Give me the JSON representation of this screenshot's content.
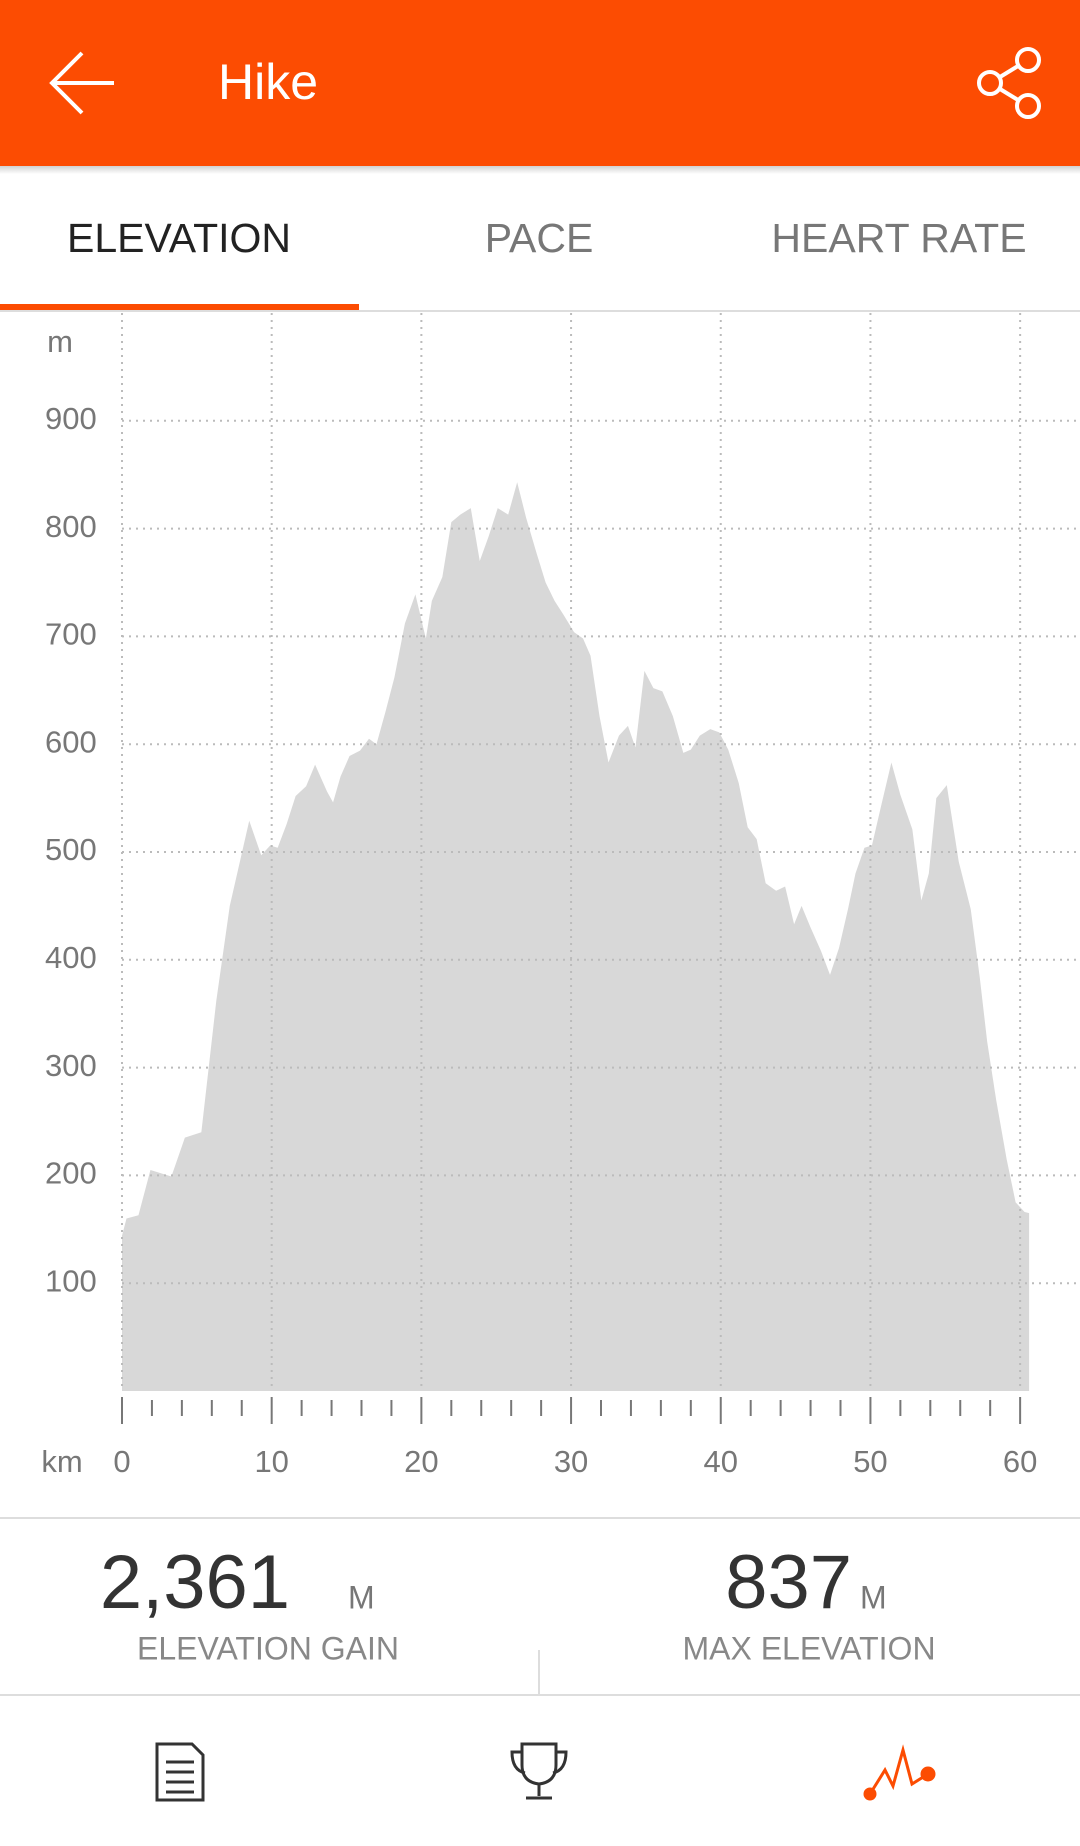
{
  "header": {
    "title": "Hike"
  },
  "tabs": [
    "ELEVATION",
    "PACE",
    "HEART RATE"
  ],
  "chart_data": {
    "type": "area",
    "y_unit_label": "m",
    "x_unit_label": "km",
    "color": "#d8d8d8",
    "grid": true,
    "xlim": [
      0,
      64
    ],
    "ylim": [
      0,
      1000
    ],
    "xticks": [
      0,
      10,
      20,
      30,
      40,
      50,
      60
    ],
    "x_minor_ticks": [
      2,
      4,
      6,
      8,
      12,
      14,
      16,
      18,
      22,
      24,
      26,
      28,
      32,
      34,
      36,
      38,
      42,
      44,
      46,
      48,
      52,
      54,
      56,
      58
    ],
    "yticks": [
      100,
      200,
      300,
      400,
      500,
      600,
      700,
      800,
      900
    ],
    "x": [
      0,
      0.3,
      1.1,
      1.9,
      3.3,
      4.2,
      5.3,
      6.3,
      7.2,
      8.5,
      9.3,
      9.9,
      10.4,
      11.0,
      11.6,
      12.3,
      12.9,
      13.7,
      14.1,
      14.6,
      15.2,
      15.9,
      16.5,
      17.0,
      17.6,
      18.2,
      18.9,
      19.6,
      20.3,
      20.7,
      21.4,
      22.0,
      22.6,
      23.3,
      23.9,
      24.5,
      25.1,
      25.8,
      26.4,
      27.0,
      27.7,
      28.3,
      28.9,
      29.5,
      30.2,
      30.8,
      31.3,
      31.9,
      32.5,
      33.2,
      33.8,
      34.3,
      34.9,
      35.5,
      36.1,
      36.8,
      37.5,
      38.0,
      38.6,
      39.3,
      39.9,
      40.5,
      41.2,
      41.8,
      42.4,
      43.0,
      43.7,
      44.3,
      44.9,
      45.4,
      46.0,
      46.7,
      47.3,
      47.9,
      48.5,
      49.0,
      49.6,
      50.1,
      50.7,
      51.4,
      52.0,
      52.8,
      53.4,
      53.9,
      54.4,
      55.1,
      55.9,
      56.7,
      57.3,
      57.8,
      58.4,
      59.1,
      59.7,
      60.3,
      60.6
    ],
    "values": [
      144,
      160,
      163,
      205,
      199,
      235,
      240,
      362,
      450,
      529,
      497,
      506,
      504,
      526,
      552,
      561,
      581,
      556,
      546,
      570,
      589,
      594,
      605,
      600,
      630,
      662,
      712,
      739,
      698,
      733,
      755,
      806,
      813,
      819,
      770,
      793,
      819,
      813,
      843,
      810,
      777,
      750,
      733,
      720,
      704,
      698,
      682,
      626,
      583,
      608,
      617,
      597,
      668,
      652,
      649,
      626,
      592,
      595,
      608,
      614,
      611,
      595,
      564,
      523,
      512,
      471,
      464,
      468,
      433,
      450,
      430,
      408,
      386,
      411,
      447,
      480,
      504,
      506,
      542,
      583,
      553,
      521,
      455,
      480,
      550,
      562,
      491,
      447,
      384,
      324,
      270,
      215,
      175,
      166,
      165
    ]
  },
  "stats": [
    {
      "value": "2,361",
      "unit": "M",
      "label": "ELEVATION GAIN"
    },
    {
      "value": "837",
      "unit": "M",
      "label": "MAX ELEVATION"
    }
  ]
}
